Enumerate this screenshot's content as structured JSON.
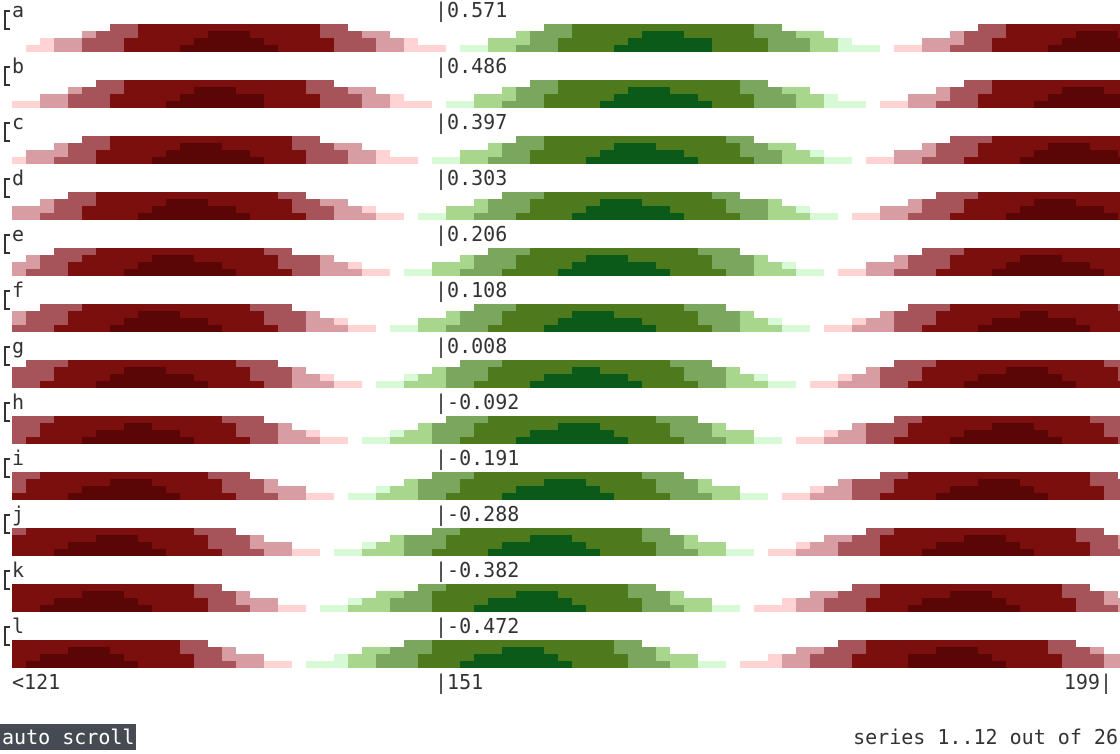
{
  "series": [
    {
      "name": "a",
      "value": "|0.571",
      "phase": 0.0
    },
    {
      "name": "b",
      "value": "|0.486",
      "phase": 0.015
    },
    {
      "name": "c",
      "value": "|0.397",
      "phase": 0.03
    },
    {
      "name": "d",
      "value": "|0.303",
      "phase": 0.045
    },
    {
      "name": "e",
      "value": "|0.206",
      "phase": 0.06
    },
    {
      "name": "f",
      "value": "|0.108",
      "phase": 0.075
    },
    {
      "name": "g",
      "value": "|0.008",
      "phase": 0.09
    },
    {
      "name": "h",
      "value": "|-0.092",
      "phase": 0.105
    },
    {
      "name": "i",
      "value": "|-0.191",
      "phase": 0.12
    },
    {
      "name": "j",
      "value": "|-0.288",
      "phase": 0.135
    },
    {
      "name": "k",
      "value": "|-0.382",
      "phase": 0.15
    },
    {
      "name": "l",
      "value": "|-0.472",
      "phase": 0.165
    }
  ],
  "axis": {
    "left": "<121",
    "mid": "|151",
    "right": "199|"
  },
  "status": {
    "auto_scroll": "auto scroll",
    "series_count": "series 1..12 out of 26"
  },
  "colors": {
    "positive": [
      "#d7f9d6",
      "#a8d68c",
      "#7aa65e",
      "#4e7a1d",
      "#0c5a1a"
    ],
    "negative": [
      "#ffd2d4",
      "#d89da2",
      "#a65359",
      "#7b0f0e",
      "#5a0606"
    ]
  }
}
